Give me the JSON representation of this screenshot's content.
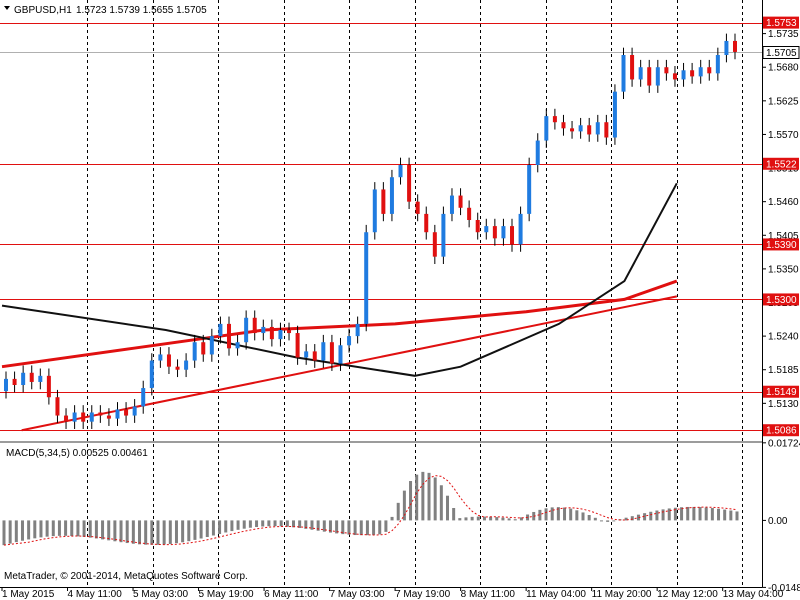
{
  "chart_data": {
    "type": "candlestick",
    "header": {
      "symbol_label": "GBPUSD,H1",
      "ohlc_text": "1.5723 1.5739 1.5655 1.5705"
    },
    "price_axis": {
      "ylim": [
        1.507,
        1.579
      ],
      "tick_labels": [
        "1.5735",
        "1.5680",
        "1.5625",
        "1.5570",
        "1.5515",
        "1.5460",
        "1.5405",
        "1.5350",
        "1.5295",
        "1.5240",
        "1.5185",
        "1.5130"
      ],
      "current_price": "1.5705"
    },
    "horizontal_levels": [
      {
        "value": 1.5753,
        "label": "1.5753"
      },
      {
        "value": 1.5522,
        "label": "1.5522"
      },
      {
        "value": 1.539,
        "label": "1.5390"
      },
      {
        "value": 1.53,
        "label": "1.5300"
      },
      {
        "value": 1.5149,
        "label": "1.5149"
      },
      {
        "value": 1.5086,
        "label": "1.5086"
      }
    ],
    "trendline": {
      "from": [
        0.0,
        1.5086
      ],
      "to": [
        10.3,
        1.5305
      ]
    },
    "time_axis": {
      "labels": [
        "1 May 2015",
        "4 May 11:00",
        "5 May 03:00",
        "5 May 19:00",
        "6 May 11:00",
        "7 May 03:00",
        "7 May 19:00",
        "8 May 11:00",
        "11 May 04:00",
        "11 May 20:00",
        "12 May 12:00",
        "13 May 04:00"
      ]
    },
    "price_series": [
      [
        1.515,
        1.517
      ],
      [
        1.517,
        1.516
      ],
      [
        1.516,
        1.518
      ],
      [
        1.518,
        1.5165
      ],
      [
        1.5165,
        1.5175
      ],
      [
        1.5175,
        1.514
      ],
      [
        1.514,
        1.511
      ],
      [
        1.511,
        1.51
      ],
      [
        1.51,
        1.5115
      ],
      [
        1.5115,
        1.51
      ],
      [
        1.51,
        1.5115
      ],
      [
        1.5115,
        1.511
      ],
      [
        1.511,
        1.5105
      ],
      [
        1.5105,
        1.512
      ],
      [
        1.512,
        1.511
      ],
      [
        1.511,
        1.5125
      ],
      [
        1.5125,
        1.5155
      ],
      [
        1.5155,
        1.52
      ],
      [
        1.52,
        1.521
      ],
      [
        1.521,
        1.519
      ],
      [
        1.519,
        1.5185
      ],
      [
        1.5185,
        1.52
      ],
      [
        1.52,
        1.523
      ],
      [
        1.523,
        1.521
      ],
      [
        1.521,
        1.524
      ],
      [
        1.524,
        1.526
      ],
      [
        1.526,
        1.522
      ],
      [
        1.522,
        1.523
      ],
      [
        1.523,
        1.527
      ],
      [
        1.527,
        1.5245
      ],
      [
        1.5245,
        1.5255
      ],
      [
        1.5255,
        1.5235
      ],
      [
        1.5235,
        1.525
      ],
      [
        1.525,
        1.5245
      ],
      [
        1.5245,
        1.5205
      ],
      [
        1.5205,
        1.5215
      ],
      [
        1.5215,
        1.52
      ],
      [
        1.52,
        1.523
      ],
      [
        1.523,
        1.5195
      ],
      [
        1.5195,
        1.5225
      ],
      [
        1.5225,
        1.524
      ],
      [
        1.524,
        1.526
      ],
      [
        1.526,
        1.541
      ],
      [
        1.541,
        1.548
      ],
      [
        1.548,
        1.544
      ],
      [
        1.544,
        1.55
      ],
      [
        1.55,
        1.552
      ],
      [
        1.552,
        1.546
      ],
      [
        1.546,
        1.544
      ],
      [
        1.544,
        1.541
      ],
      [
        1.541,
        1.537
      ],
      [
        1.537,
        1.544
      ],
      [
        1.544,
        1.547
      ],
      [
        1.547,
        1.545
      ],
      [
        1.545,
        1.543
      ],
      [
        1.543,
        1.541
      ],
      [
        1.541,
        1.542
      ],
      [
        1.542,
        1.54
      ],
      [
        1.54,
        1.542
      ],
      [
        1.542,
        1.539
      ],
      [
        1.539,
        1.544
      ],
      [
        1.544,
        1.552
      ],
      [
        1.552,
        1.556
      ],
      [
        1.556,
        1.56
      ],
      [
        1.56,
        1.559
      ],
      [
        1.559,
        1.558
      ],
      [
        1.558,
        1.5575
      ],
      [
        1.5575,
        1.5585
      ],
      [
        1.5585,
        1.557
      ],
      [
        1.557,
        1.559
      ],
      [
        1.559,
        1.5565
      ],
      [
        1.5565,
        1.564
      ],
      [
        1.564,
        1.57
      ],
      [
        1.57,
        1.566
      ],
      [
        1.566,
        1.568
      ],
      [
        1.568,
        1.565
      ],
      [
        1.565,
        1.568
      ],
      [
        1.568,
        1.567
      ],
      [
        1.567,
        1.566
      ],
      [
        1.566,
        1.5675
      ],
      [
        1.5675,
        1.5665
      ],
      [
        1.5665,
        1.568
      ],
      [
        1.568,
        1.567
      ],
      [
        1.567,
        1.57
      ],
      [
        1.57,
        1.5723
      ],
      [
        1.5723,
        1.5705
      ]
    ],
    "ma_black": {
      "name": "",
      "points": [
        [
          0,
          1.529
        ],
        [
          2.5,
          1.525
        ],
        [
          4.5,
          1.5205
        ],
        [
          6.3,
          1.5175
        ],
        [
          7.0,
          1.519
        ],
        [
          8.5,
          1.526
        ],
        [
          9.5,
          1.533
        ],
        [
          10.3,
          1.549
        ]
      ]
    },
    "ma_red": {
      "name": "",
      "points": [
        [
          0,
          1.519
        ],
        [
          2.0,
          1.522
        ],
        [
          4.0,
          1.525
        ],
        [
          6.0,
          1.526
        ],
        [
          8.0,
          1.528
        ],
        [
          9.5,
          1.53
        ],
        [
          10.3,
          1.533
        ]
      ]
    },
    "macd": {
      "label": "MACD(5,34,5) 0.00525 0.00461",
      "ylim": [
        -0.0148,
        0.0172
      ],
      "tick_labels": [
        "0.01724",
        "0.00",
        "-0.01489"
      ],
      "histogram": [],
      "signal": []
    },
    "copyright": "MetaTrader, © 2001-2014, MetaQuotes Software Corp."
  }
}
